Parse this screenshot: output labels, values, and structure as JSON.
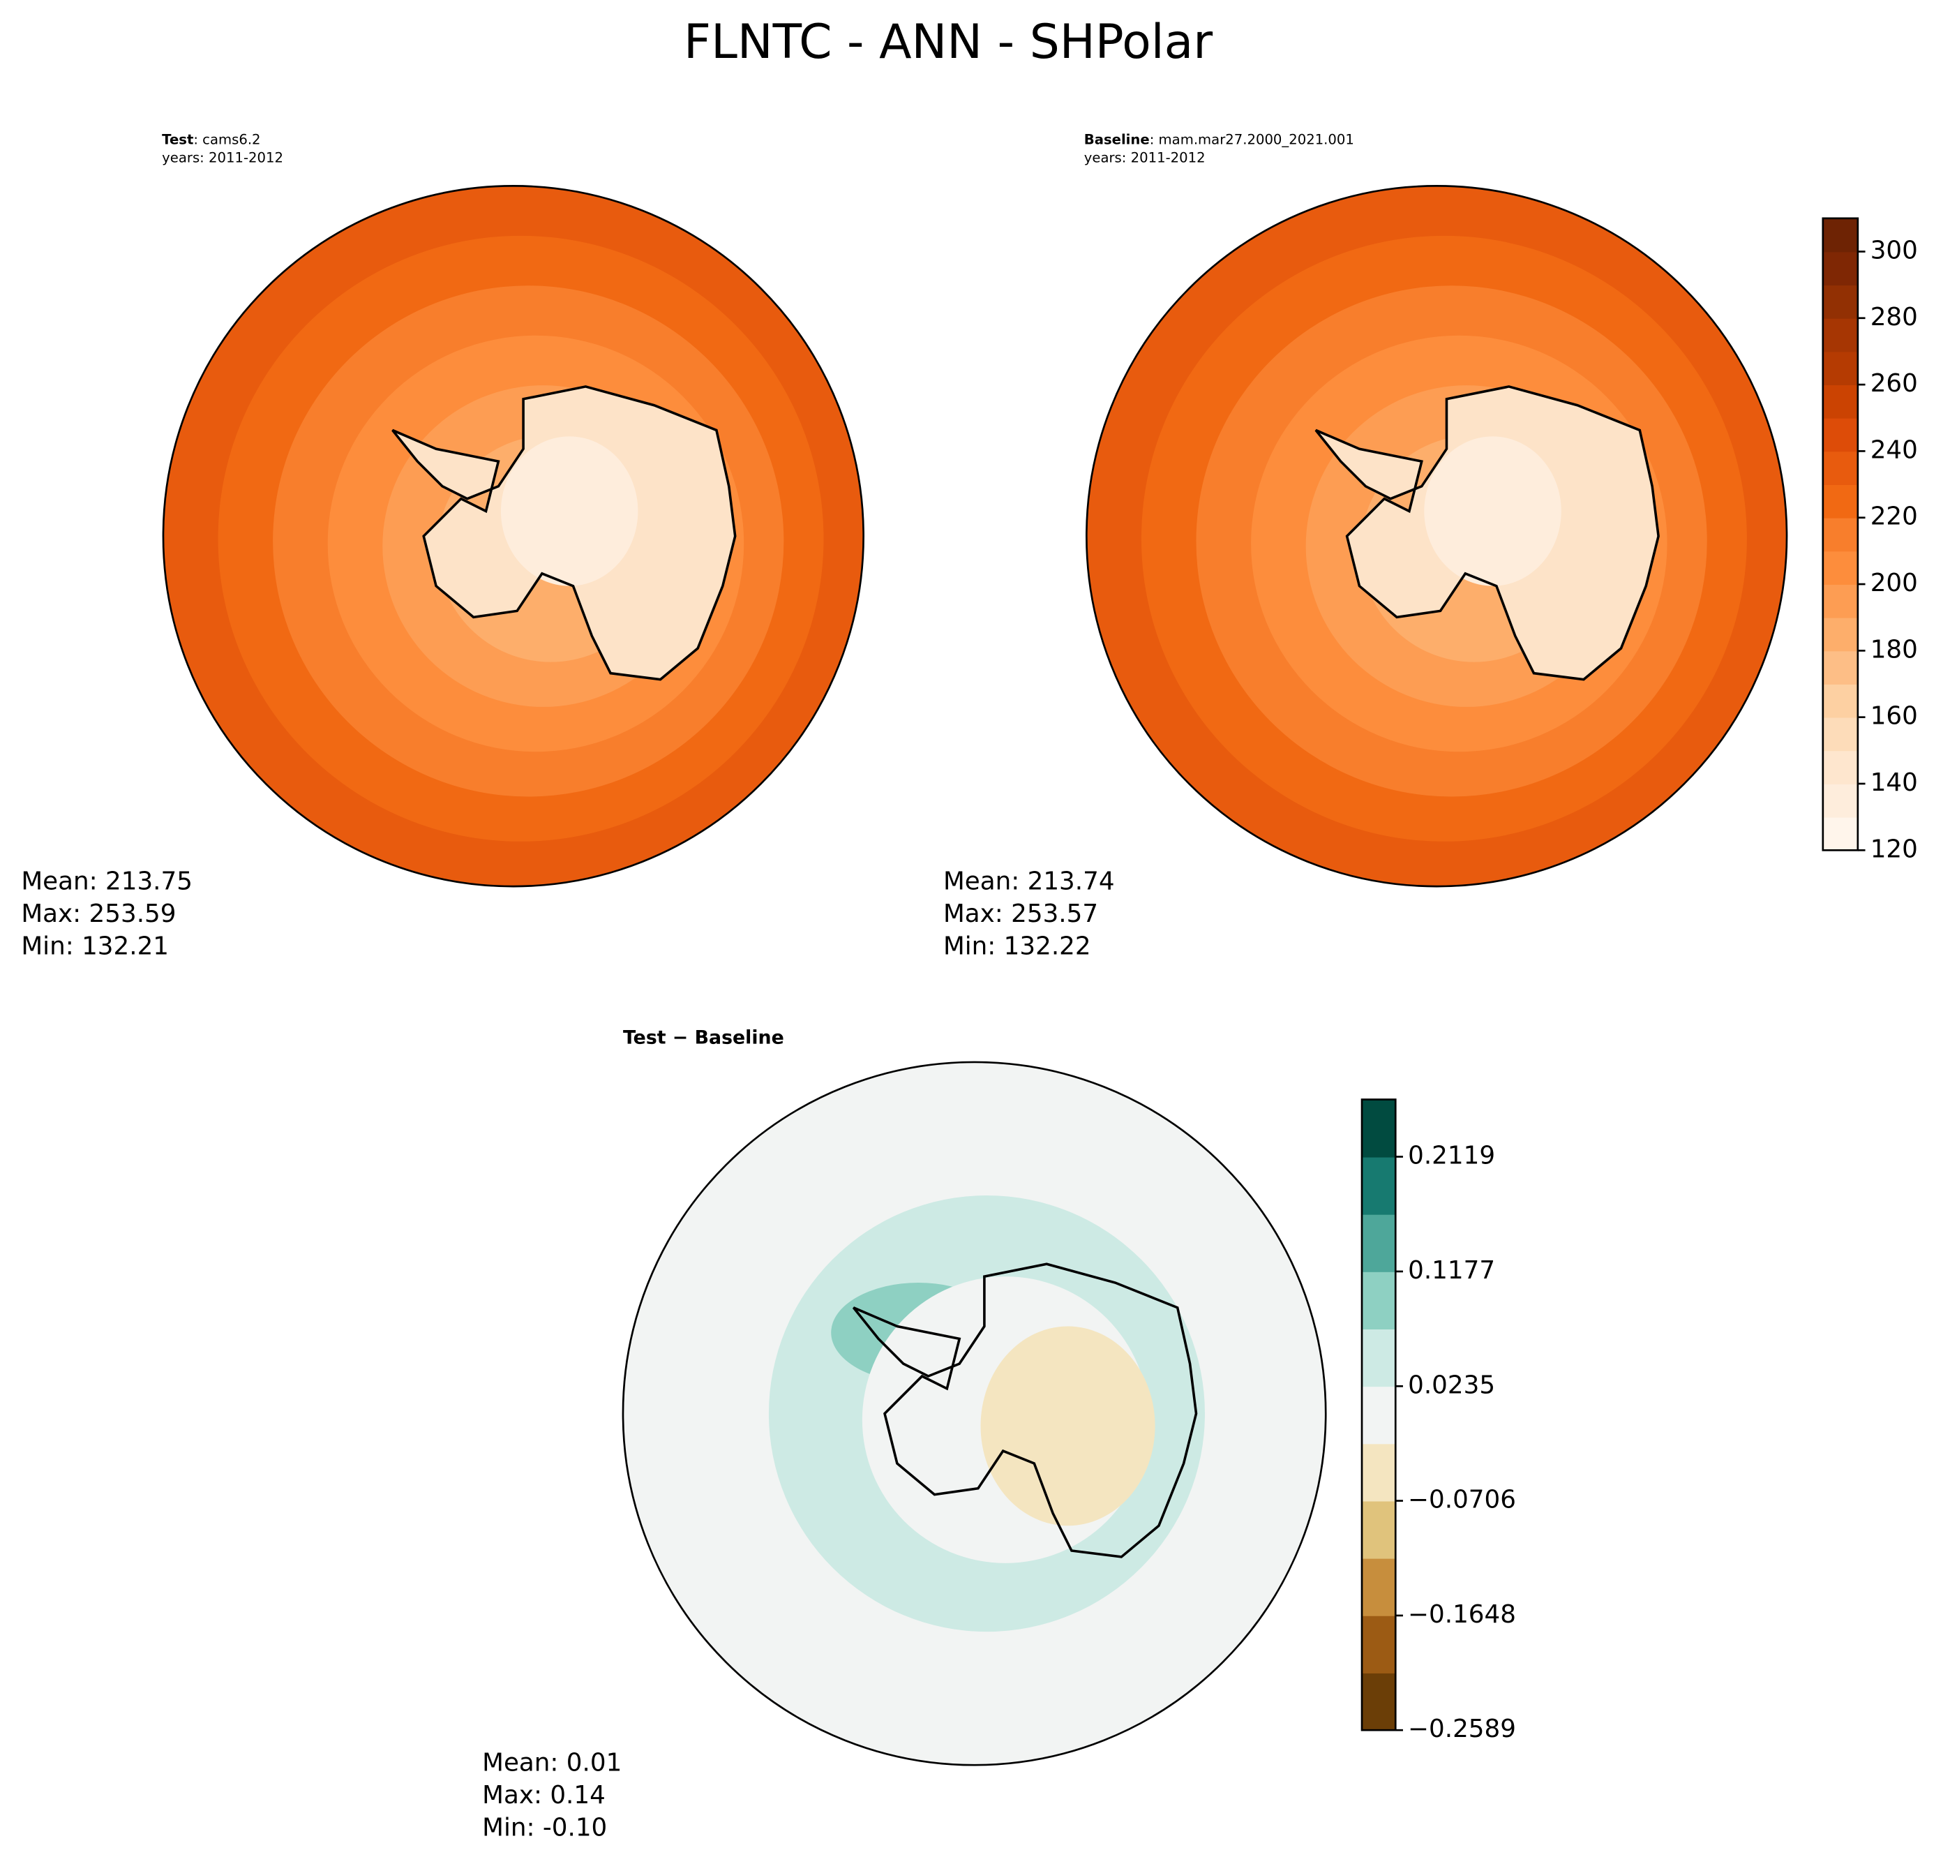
{
  "title": "FLNTC - ANN - SHPolar",
  "chart_data": [
    {
      "type": "contour",
      "label": "Test",
      "text": ": cams6.2",
      "years": "years: 2011-2012",
      "stats": [
        "Mean: 213.75",
        "Max: 253.59",
        "Min: 132.21"
      ]
    },
    {
      "type": "contour",
      "label": "Baseline",
      "text": ": mam.mar27.2000_2021.001",
      "years": "years: 2011-2012",
      "stats": [
        "Mean: 213.74",
        "Max: 253.57",
        "Min: 132.22"
      ],
      "colorbar": {
        "ylim": [
          120,
          310
        ],
        "yticks": [
          120,
          140,
          160,
          180,
          200,
          220,
          240,
          260,
          280,
          300
        ],
        "colors": [
          "#fff5eb",
          "#feeddc",
          "#fee6ce",
          "#fddcb9",
          "#fdd0a2",
          "#fdbe86",
          "#fdae6b",
          "#fd9d53",
          "#fd8d3c",
          "#f87e2c",
          "#f16913",
          "#e85b0e",
          "#dd4c08",
          "#cb4302",
          "#b53b02",
          "#a63603",
          "#923003",
          "#7f2704",
          "#6e2304"
        ]
      }
    },
    {
      "type": "contour",
      "label": "Test − Baseline",
      "stats": [
        "Mean:  0.01",
        "Max:  0.14",
        "Min: -0.10"
      ],
      "colorbar": {
        "ylim": [
          -0.2589,
          0.2589
        ],
        "yticks": [
          {
            "value": -0.2589,
            "label": "−0.2589"
          },
          {
            "value": -0.1648,
            "label": "−0.1648"
          },
          {
            "value": -0.0706,
            "label": "−0.0706"
          },
          0.0235,
          0.1177,
          0.2119
        ],
        "colors": [
          "#6b3e07",
          "#9c5b14",
          "#c78e3d",
          "#e0c37c",
          "#f4e5c0",
          "#f2f4f3",
          "#cdeae4",
          "#8ed0c2",
          "#4ea79a",
          "#177a70",
          "#014b40"
        ]
      }
    }
  ]
}
